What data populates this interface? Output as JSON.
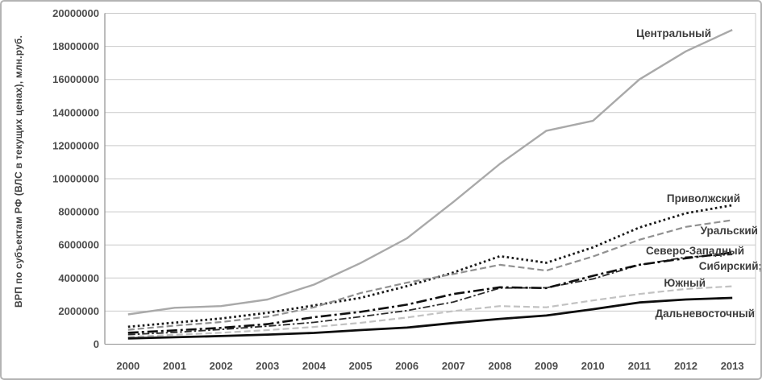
{
  "figure": {
    "background": "#ffffff",
    "border_color": "#b3b3b3",
    "axis_color": "#8f8f8f",
    "gridline_color": "#c9c9c9",
    "tick_label_color": "#4d4d4d",
    "series_label_color": "#3d3d3d"
  },
  "chart_data": {
    "type": "line",
    "title": "",
    "xlabel": "",
    "ylabel": "ВРП по субъектам РФ (ВЛС в текущих ценах), млн.руб.",
    "x": [
      "2000",
      "2001",
      "2002",
      "2003",
      "2004",
      "2005",
      "2006",
      "2007",
      "2008",
      "2009",
      "2010",
      "2011",
      "2012",
      "2013"
    ],
    "ylim": [
      0,
      20000000
    ],
    "ytick_step": 2000000,
    "grid": true,
    "legend_position": "direct-labels-right",
    "series": [
      {
        "name": "Центральный",
        "label": "Центральный",
        "color": "#a9a9a9",
        "style": "solid",
        "width": 2.4,
        "values": [
          1800000,
          2200000,
          2300000,
          2700000,
          3600000,
          4900000,
          6400000,
          8600000,
          10900000,
          12900000,
          13500000,
          16000000,
          17700000,
          19000000
        ]
      },
      {
        "name": "Приволжский",
        "label": "Приволжский",
        "color": "#1a1a1a",
        "style": "dotted",
        "width": 2.8,
        "values": [
          1050000,
          1300000,
          1550000,
          1900000,
          2340000,
          2800000,
          3510000,
          4330000,
          5320000,
          4920000,
          5850000,
          7050000,
          7910000,
          8400000
        ]
      },
      {
        "name": "Уральский",
        "label": "Уральский",
        "color": "#919191",
        "style": "dashed",
        "width": 2.2,
        "values": [
          870000,
          1120000,
          1340000,
          1660000,
          2230000,
          3090000,
          3720000,
          4240000,
          4800000,
          4450000,
          5300000,
          6310000,
          7090000,
          7500000
        ]
      },
      {
        "name": "Северо-Западный",
        "label": "Северо-Западный",
        "color": "#2b2b2b",
        "style": "dash-dot",
        "width": 1.8,
        "values": [
          580000,
          710000,
          890000,
          1090000,
          1320000,
          1660000,
          2030000,
          2550000,
          3390000,
          3410000,
          3940000,
          4790000,
          5260000,
          5420000
        ]
      },
      {
        "name": "Сибирский",
        "label": "Сибирский;",
        "color": "#0f0f0f",
        "style": "dash-dot-dot",
        "width": 2.6,
        "values": [
          690000,
          830000,
          990000,
          1210000,
          1630000,
          1950000,
          2390000,
          3030000,
          3440000,
          3390000,
          4130000,
          4800000,
          5190000,
          5540000
        ]
      },
      {
        "name": "Южный",
        "label": "Южный",
        "color": "#c2c2c2",
        "style": "dashed",
        "width": 2.2,
        "values": [
          440000,
          570000,
          690000,
          850000,
          1040000,
          1290000,
          1610000,
          2000000,
          2300000,
          2230000,
          2640000,
          3030000,
          3340000,
          3500000
        ]
      },
      {
        "name": "Дальневосточный",
        "label": "Дальневосточный",
        "color": "#0d0d0d",
        "style": "solid",
        "width": 2.8,
        "values": [
          350000,
          420000,
          490000,
          580000,
          680000,
          850000,
          1000000,
          1280000,
          1530000,
          1730000,
          2110000,
          2520000,
          2700000,
          2800000
        ]
      }
    ]
  }
}
